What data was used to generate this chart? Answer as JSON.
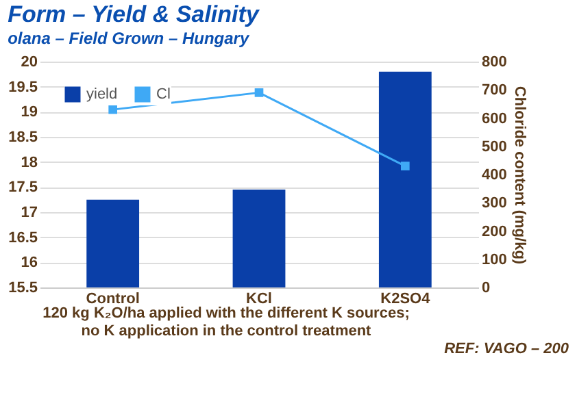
{
  "chart_data": {
    "type": "bar",
    "title": "Form – Yield & Salinity",
    "subtitle": "olana – Field Grown – Hungary",
    "y2label": "Chloride content (mg/kg)",
    "categories": [
      "Control",
      "KCl",
      "K2SO4"
    ],
    "series": [
      {
        "name": "yield",
        "color": "#0a3fa8",
        "values": [
          17.25,
          17.45,
          19.8
        ]
      },
      {
        "name": "Cl",
        "type": "line",
        "axis": "y2",
        "color": "#3fa9f5",
        "marker": "square",
        "values": [
          630,
          690,
          430
        ]
      }
    ],
    "ylim": [
      15.5,
      20
    ],
    "yticks": [
      15.5,
      16,
      16.5,
      17,
      17.5,
      18,
      18.5,
      19,
      19.5,
      20
    ],
    "y2lim": [
      0,
      800
    ],
    "y2ticks": [
      0,
      100,
      200,
      300,
      400,
      500,
      600,
      700,
      800
    ],
    "grid": "y",
    "legend": "top left",
    "annotations": [
      "120 kg K₂O/ha applied with the different K sources;",
      "no K application in the control treatment",
      "REF: VAGO – 200"
    ]
  }
}
